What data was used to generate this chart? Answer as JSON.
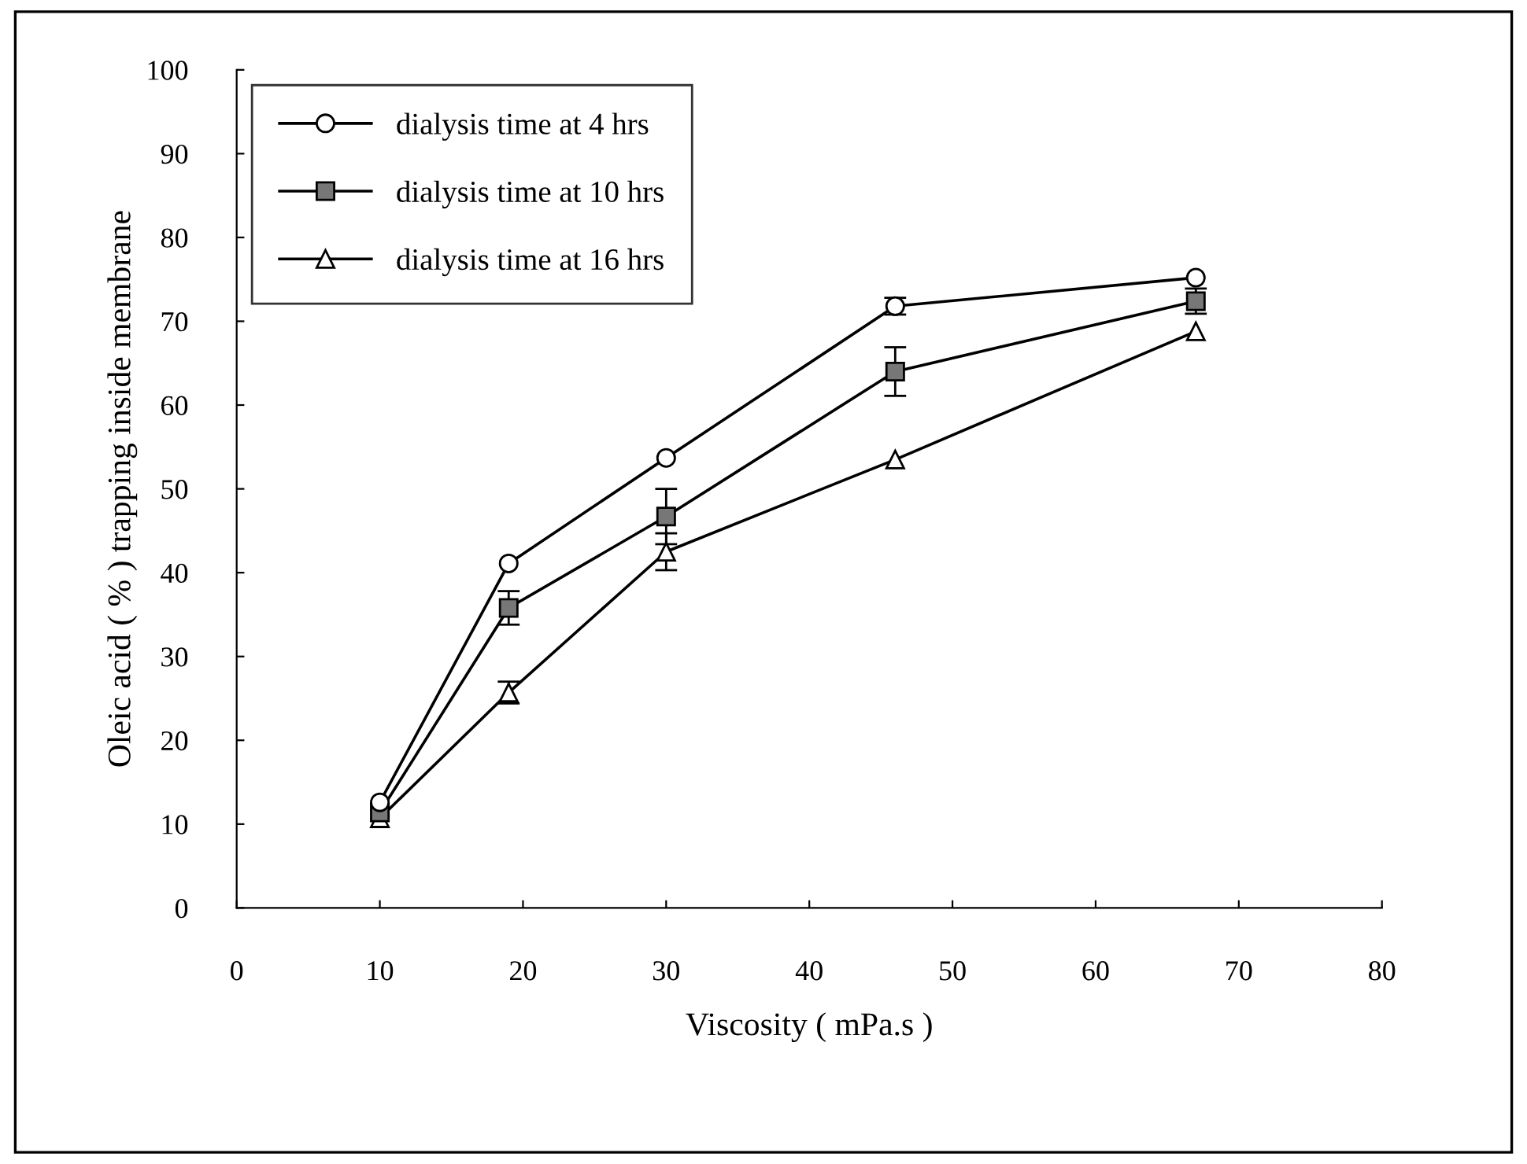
{
  "chart_data": {
    "type": "line",
    "xlabel": "Viscosity ( mPa.s )",
    "ylabel": "Oleic acid ( % ) trapping inside membrane",
    "x": [
      10,
      19,
      30,
      46,
      67
    ],
    "series": [
      {
        "name": "dialysis time at 4 hrs",
        "color": "#000000",
        "marker": "circle",
        "values": [
          12.6,
          41.1,
          53.7,
          71.8,
          75.2
        ],
        "errors": [
          null,
          null,
          null,
          1,
          null
        ]
      },
      {
        "name": "dialysis time at 10 hrs",
        "color": "#000000",
        "marker": "square",
        "values": [
          11.4,
          35.8,
          46.7,
          64.0,
          72.4
        ],
        "errors": [
          null,
          2,
          3.3,
          2.9,
          1.5
        ]
      },
      {
        "name": "dialysis time at 16 hrs",
        "color": "#000000",
        "marker": "triangle",
        "values": [
          10.7,
          25.7,
          42.5,
          53.5,
          68.8
        ],
        "errors": [
          null,
          1.3,
          2.2,
          null,
          null
        ]
      }
    ],
    "xlim": [
      0,
      80
    ],
    "xticks": [
      0,
      10,
      20,
      30,
      40,
      50,
      60,
      70,
      80
    ],
    "ylim": [
      0,
      100
    ],
    "yticks": [
      0,
      10,
      20,
      30,
      40,
      50,
      60,
      70,
      80,
      90,
      100
    ],
    "grid": false,
    "legend": "top left",
    "line_style": "solid"
  }
}
